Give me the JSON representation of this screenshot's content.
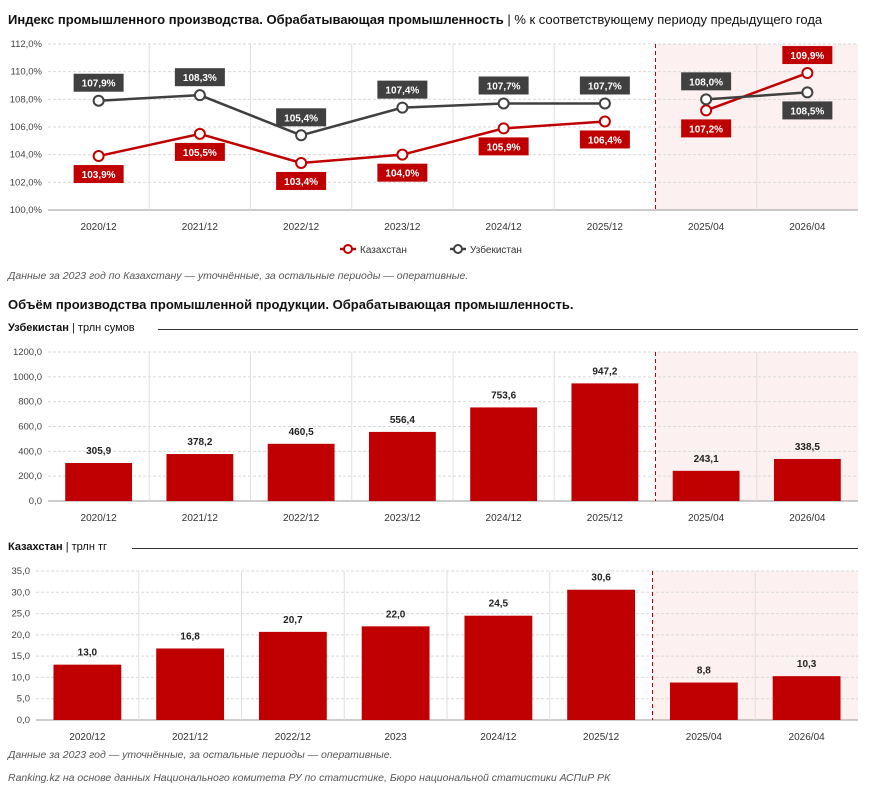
{
  "header": {
    "title_bold": "Индекс промышленного производства. Обрабатывающая промышленность",
    "title_sep": " | ",
    "title_rest": "% к соответствующему периоду предыдущего года"
  },
  "notes": {
    "top": "Данные за 2023 год по Казахстану — уточнённые, за остальные периоды — оперативные.",
    "bottom": "Данные за 2023 год — уточнённые, за остальные периоды — оперативные.",
    "source": "Ranking.kz на основе данных Национального комитета РУ по статистике, Бюро национальной статистики АСПиР РК"
  },
  "section2": {
    "title": "Объём производства промышленной продукции. Обрабатывающая промышленность."
  },
  "colors": {
    "kz": "#c00000",
    "uz": "#404040",
    "highlight_bg": "#fdf0f0",
    "divider": "#c00000"
  },
  "chart_data": [
    {
      "type": "line",
      "categories": [
        "2020/12",
        "2021/12",
        "2022/12",
        "2023/12",
        "2024/12",
        "2025/12",
        "2025/04",
        "2026/04"
      ],
      "ylim": [
        100,
        112
      ],
      "yticks": [
        "100,0%",
        "102,0%",
        "104,0%",
        "106,0%",
        "108,0%",
        "110,0%",
        "112,0%"
      ],
      "ytick_values": [
        100,
        102,
        104,
        106,
        108,
        110,
        112
      ],
      "series": [
        {
          "name": "Казахстан",
          "color": "#c00000",
          "values": [
            103.9,
            105.5,
            103.4,
            104.0,
            105.9,
            106.4,
            107.2,
            109.9
          ],
          "labels": [
            "103,9%",
            "105,5%",
            "103,4%",
            "104,0%",
            "105,9%",
            "106,4%",
            "107,2%",
            "109,9%"
          ]
        },
        {
          "name": "Узбекистан",
          "color": "#404040",
          "values": [
            107.9,
            108.3,
            105.4,
            107.4,
            107.7,
            107.7,
            108.0,
            108.5
          ],
          "labels": [
            "107,9%",
            "108,3%",
            "105,4%",
            "107,4%",
            "107,7%",
            "107,7%",
            "108,0%",
            "108,5%"
          ]
        }
      ],
      "legend": "bottom-center"
    },
    {
      "type": "bar",
      "country": "Узбекистан",
      "unit": "трлн сумов",
      "categories": [
        "2020/12",
        "2021/12",
        "2022/12",
        "2023/12",
        "2024/12",
        "2025/12",
        "2025/04",
        "2026/04"
      ],
      "values": [
        305.9,
        378.2,
        460.5,
        556.4,
        753.6,
        947.2,
        243.1,
        338.5
      ],
      "labels": [
        "305,9",
        "378,2",
        "460,5",
        "556,4",
        "753,6",
        "947,2",
        "243,1",
        "338,5"
      ],
      "ylim": [
        0,
        1200
      ],
      "yticks": [
        "0,0",
        "200,0",
        "400,0",
        "600,0",
        "800,0",
        "1000,0",
        "1200,0"
      ],
      "ytick_values": [
        0,
        200,
        400,
        600,
        800,
        1000,
        1200
      ]
    },
    {
      "type": "bar",
      "country": "Казахстан",
      "unit": "трлн тг",
      "categories": [
        "2020/12",
        "2021/12",
        "2022/12",
        "2023",
        "2024/12",
        "2025/12",
        "2025/04",
        "2026/04"
      ],
      "values": [
        13.0,
        16.8,
        20.7,
        22.0,
        24.5,
        30.6,
        8.8,
        10.3
      ],
      "labels": [
        "13,0",
        "16,8",
        "20,7",
        "22,0",
        "24,5",
        "30,6",
        "8,8",
        "10,3"
      ],
      "ylim": [
        0,
        35
      ],
      "yticks": [
        "0,0",
        "5,0",
        "10,0",
        "15,0",
        "20,0",
        "25,0",
        "30,0",
        "35,0"
      ],
      "ytick_values": [
        0,
        5,
        10,
        15,
        20,
        25,
        30,
        35
      ]
    }
  ]
}
